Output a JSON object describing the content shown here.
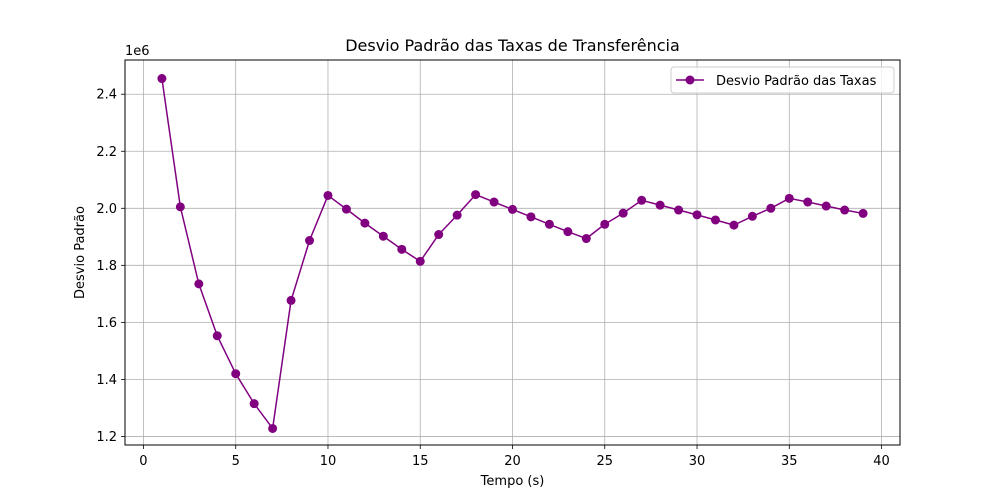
{
  "chart_data": {
    "type": "line",
    "title": "Desvio Padrão das Taxas de Transferência",
    "xlabel": "Tempo (s)",
    "ylabel": "Desvio Padrão",
    "y_scale_label": "1e6",
    "xlim": [
      -1,
      41
    ],
    "ylim": [
      1.17,
      2.52
    ],
    "x_ticks": [
      0,
      5,
      10,
      15,
      20,
      25,
      30,
      35,
      40
    ],
    "x_tick_labels": [
      "0",
      "5",
      "10",
      "15",
      "20",
      "25",
      "30",
      "35",
      "40"
    ],
    "y_ticks": [
      1.2,
      1.4,
      1.6,
      1.8,
      2.0,
      2.2,
      2.4
    ],
    "y_tick_labels": [
      "1.2",
      "1.4",
      "1.6",
      "1.8",
      "2.0",
      "2.2",
      "2.4"
    ],
    "grid": true,
    "legend_position": "top-right",
    "series": [
      {
        "name": "Desvio Padrão das Taxas",
        "color": "#800080",
        "marker": "circle",
        "x": [
          1,
          2,
          3,
          4,
          5,
          6,
          7,
          8,
          9,
          10,
          11,
          12,
          13,
          14,
          15,
          16,
          17,
          18,
          19,
          20,
          21,
          22,
          23,
          24,
          25,
          26,
          27,
          28,
          29,
          30,
          31,
          32,
          33,
          34,
          35,
          36,
          37,
          38,
          39
        ],
        "y": [
          2.455,
          2.005,
          1.735,
          1.553,
          1.42,
          1.315,
          1.228,
          1.677,
          1.887,
          2.045,
          1.997,
          1.948,
          1.902,
          1.856,
          1.814,
          1.908,
          1.976,
          2.048,
          2.022,
          1.996,
          1.97,
          1.944,
          1.918,
          1.894,
          1.944,
          1.983,
          2.028,
          2.011,
          1.994,
          1.977,
          1.959,
          1.941,
          1.972,
          2.0,
          2.035,
          2.022,
          2.008,
          1.994,
          1.982
        ]
      }
    ]
  }
}
